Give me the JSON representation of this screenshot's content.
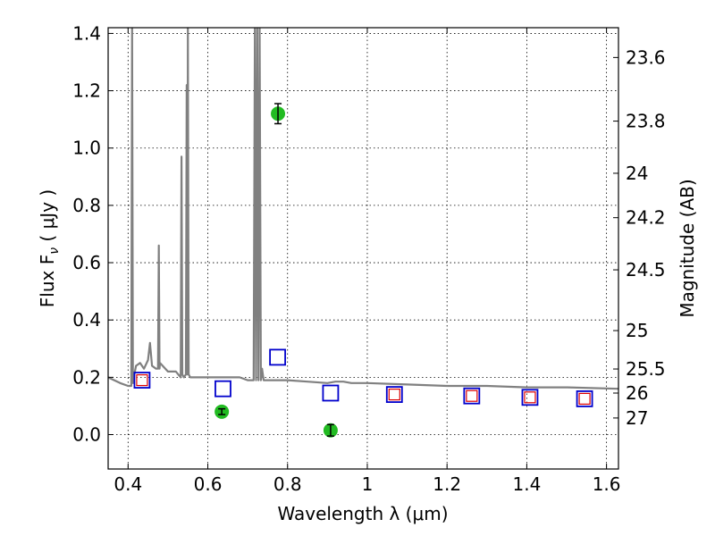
{
  "chart_data": {
    "type": "scatter",
    "title": "",
    "xlabel": "Wavelength  λ (μm)",
    "ylabel": "Flux  F",
    "ylabel_sub": "ν",
    "ylabel_unit": "  ( μJy )",
    "ylabel_right": "Magnitude (AB)",
    "xlim": [
      0.35,
      1.63
    ],
    "ylim": [
      -0.12,
      1.42
    ],
    "grid": true,
    "x_ticks": [
      0.4,
      0.6,
      0.8,
      1.0,
      1.2,
      1.4,
      1.6
    ],
    "x_tick_labels": [
      "0.4",
      "0.6",
      "0.8",
      "1",
      "1.2",
      "1.4",
      "1.6"
    ],
    "y_ticks": [
      0.0,
      0.2,
      0.4,
      0.6,
      0.8,
      1.0,
      1.2,
      1.4
    ],
    "y_tick_labels": [
      "0.0",
      "0.2",
      "0.4",
      "0.6",
      "0.8",
      "1.0",
      "1.2",
      "1.4"
    ],
    "right_ticks": [
      {
        "label": "23.6",
        "flux": 1.316
      },
      {
        "label": "23.8",
        "flux": 1.094
      },
      {
        "label": "24",
        "flux": 0.912
      },
      {
        "label": "24.2",
        "flux": 0.757
      },
      {
        "label": "24.5",
        "flux": 0.575
      },
      {
        "label": "25",
        "flux": 0.363
      },
      {
        "label": "25.5",
        "flux": 0.229
      },
      {
        "label": "26",
        "flux": 0.145
      },
      {
        "label": "27",
        "flux": 0.058
      }
    ],
    "colors": {
      "spectrum": "#808080",
      "model_box": "#0000cc",
      "observed_box": "#dd0000",
      "detection": "#22bb22",
      "errorbar": "#000000"
    },
    "series": [
      {
        "kind": "line",
        "x": [
          0.35,
          0.38,
          0.4,
          0.408,
          0.41,
          0.412,
          0.414,
          0.42,
          0.43,
          0.44,
          0.45,
          0.455,
          0.46,
          0.47,
          0.475,
          0.477,
          0.479,
          0.48,
          0.5,
          0.52,
          0.532,
          0.534,
          0.536,
          0.54,
          0.545,
          0.547,
          0.549,
          0.55,
          0.552,
          0.556,
          0.58,
          0.6,
          0.64,
          0.68,
          0.7,
          0.715,
          0.718,
          0.721,
          0.724,
          0.727,
          0.73,
          0.733,
          0.736,
          0.74,
          0.76,
          0.78,
          0.8,
          0.85,
          0.9,
          0.92,
          0.94,
          0.96,
          1.0,
          1.1,
          1.2,
          1.3,
          1.4,
          1.5,
          1.63
        ],
        "y": [
          0.2,
          0.18,
          0.17,
          0.17,
          1.42,
          0.18,
          0.2,
          0.24,
          0.25,
          0.23,
          0.26,
          0.32,
          0.24,
          0.23,
          0.23,
          0.66,
          0.23,
          0.25,
          0.22,
          0.22,
          0.2,
          0.97,
          0.21,
          0.2,
          0.21,
          1.22,
          0.21,
          1.42,
          0.21,
          0.2,
          0.2,
          0.2,
          0.2,
          0.2,
          0.19,
          0.19,
          1.42,
          0.19,
          1.42,
          0.19,
          1.42,
          0.19,
          0.23,
          0.19,
          0.19,
          0.19,
          0.19,
          0.185,
          0.18,
          0.185,
          0.185,
          0.18,
          0.18,
          0.175,
          0.17,
          0.17,
          0.165,
          0.165,
          0.16
        ]
      },
      {
        "kind": "box",
        "color_key": "model_box",
        "x": [
          0.435,
          0.638,
          0.775,
          0.908,
          1.068,
          1.262,
          1.408,
          1.545
        ],
        "y": [
          0.19,
          0.16,
          0.27,
          0.145,
          0.14,
          0.135,
          0.13,
          0.125
        ]
      },
      {
        "kind": "box",
        "color_key": "observed_box",
        "x": [
          0.435,
          1.068,
          1.262,
          1.408,
          1.545
        ],
        "y": [
          0.19,
          0.14,
          0.135,
          0.13,
          0.125
        ]
      },
      {
        "kind": "point",
        "color_key": "detection",
        "x": [
          0.635,
          0.776,
          0.908
        ],
        "y": [
          0.08,
          1.12,
          0.015
        ],
        "err": [
          0.01,
          0.035,
          0.02
        ]
      }
    ]
  }
}
